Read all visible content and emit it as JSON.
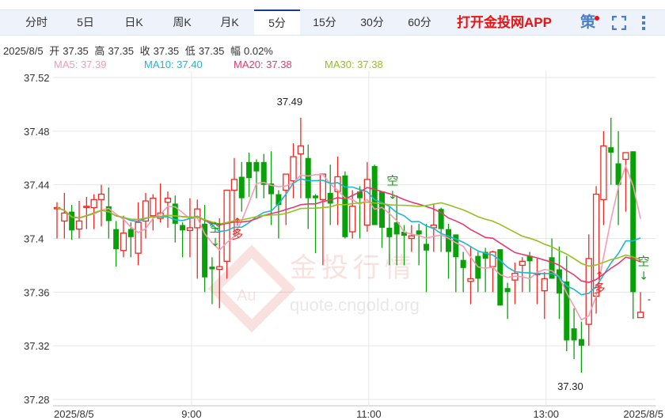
{
  "tabs": [
    {
      "label": "分时"
    },
    {
      "label": "5日"
    },
    {
      "label": "日K"
    },
    {
      "label": "周K"
    },
    {
      "label": "月K"
    },
    {
      "label": "5分",
      "active": true
    },
    {
      "label": "15分"
    },
    {
      "label": "30分"
    },
    {
      "label": "60分"
    }
  ],
  "app_link": "打开金投网APP",
  "strategy_label": "策",
  "icons": {
    "strategy": "strategy-icon",
    "fullscreen": "fullscreen-icon",
    "menu": "more-vertical-icon"
  },
  "info": {
    "date": "2025/8/5",
    "open_label": "开",
    "open": "37.35",
    "high_label": "高",
    "high": "37.35",
    "close_label": "收",
    "close": "37.35",
    "low_label": "低",
    "low": "37.35",
    "amp_label": "幅",
    "amp": "0.02%"
  },
  "ma_legend": [
    {
      "text": "MA5: 37.39",
      "color": "#f59bb6"
    },
    {
      "text": "MA10: 37.40",
      "color": "#1fb6d6"
    },
    {
      "text": "MA20: 37.38",
      "color": "#e8396f"
    },
    {
      "text": "MA30: 37.38",
      "color": "#95c01e"
    }
  ],
  "watermark": {
    "logo": "Au",
    "name": "金投行情",
    "url": "quote.cngold.org"
  },
  "colors": {
    "up": "#ee2a24",
    "down": "#0aa00a",
    "grid": "#e6e6e6"
  },
  "chart_data": {
    "type": "candlestick",
    "interval": "5分",
    "ylim": [
      37.28,
      37.52
    ],
    "yticks": [
      "37.52",
      "37.48",
      "37.44",
      "37.4",
      "37.36",
      "37.32",
      "37.28"
    ],
    "ytick_values": [
      37.52,
      37.48,
      37.44,
      37.4,
      37.36,
      37.32,
      37.28
    ],
    "xticks": [
      {
        "index": 0,
        "label": "2025/8/5"
      },
      {
        "index": 18,
        "label": "9:00"
      },
      {
        "index": 42,
        "label": "11:00"
      },
      {
        "index": 66,
        "label": "13:00"
      },
      {
        "index": 79,
        "label": "2025/8/5"
      }
    ],
    "grid": true,
    "ma_periods": [
      5,
      10,
      20,
      30
    ],
    "ohlc": [
      [
        37.423,
        37.427,
        37.4,
        37.423
      ],
      [
        37.413,
        37.434,
        37.4,
        37.419
      ],
      [
        37.42,
        37.425,
        37.399,
        37.406
      ],
      [
        37.407,
        37.428,
        37.4,
        37.413
      ],
      [
        37.424,
        37.431,
        37.407,
        37.424
      ],
      [
        37.423,
        37.433,
        37.407,
        37.429
      ],
      [
        37.429,
        37.44,
        37.409,
        37.433
      ],
      [
        37.424,
        37.438,
        37.4,
        37.413
      ],
      [
        37.407,
        37.413,
        37.379,
        37.392
      ],
      [
        37.391,
        37.417,
        37.386,
        37.404
      ],
      [
        37.407,
        37.412,
        37.386,
        37.401
      ],
      [
        37.389,
        37.427,
        37.38,
        37.412
      ],
      [
        37.413,
        37.434,
        37.4,
        37.428
      ],
      [
        37.417,
        37.433,
        37.406,
        37.43
      ],
      [
        37.415,
        37.441,
        37.412,
        37.419
      ],
      [
        37.427,
        37.435,
        37.408,
        37.43
      ],
      [
        37.426,
        37.432,
        37.397,
        37.411
      ],
      [
        37.41,
        37.412,
        37.386,
        37.406
      ],
      [
        37.406,
        37.43,
        37.386,
        37.408
      ],
      [
        37.408,
        37.429,
        37.37,
        37.422
      ],
      [
        37.411,
        37.425,
        37.36,
        37.371
      ],
      [
        37.379,
        37.386,
        37.351,
        37.377
      ],
      [
        37.377,
        37.415,
        37.348,
        37.379
      ],
      [
        37.383,
        37.436,
        37.37,
        37.436
      ],
      [
        37.436,
        37.46,
        37.402,
        37.444
      ],
      [
        37.446,
        37.457,
        37.42,
        37.43
      ],
      [
        37.457,
        37.464,
        37.431,
        37.445
      ],
      [
        37.457,
        37.459,
        37.43,
        37.45
      ],
      [
        37.457,
        37.463,
        37.43,
        37.44
      ],
      [
        37.441,
        37.465,
        37.41,
        37.433
      ],
      [
        37.433,
        37.436,
        37.4,
        37.425
      ],
      [
        37.436,
        37.448,
        37.41,
        37.448
      ],
      [
        37.443,
        37.471,
        37.43,
        37.461
      ],
      [
        37.463,
        37.49,
        37.43,
        37.469
      ],
      [
        37.46,
        37.47,
        37.407,
        37.43
      ],
      [
        37.432,
        37.433,
        37.389,
        37.43
      ],
      [
        37.429,
        37.448,
        37.38,
        37.448
      ],
      [
        37.434,
        37.455,
        37.41,
        37.426
      ],
      [
        37.435,
        37.461,
        37.41,
        37.446
      ],
      [
        37.447,
        37.45,
        37.4,
        37.401
      ],
      [
        37.405,
        37.436,
        37.4,
        37.424
      ],
      [
        37.435,
        37.439,
        37.4,
        37.43
      ],
      [
        37.41,
        37.457,
        37.405,
        37.444
      ],
      [
        37.454,
        37.455,
        37.41,
        37.41
      ],
      [
        37.435,
        37.435,
        37.393,
        37.408
      ],
      [
        37.408,
        37.424,
        37.38,
        37.401
      ],
      [
        37.412,
        37.432,
        37.38,
        37.403
      ],
      [
        37.405,
        37.41,
        37.38,
        37.402
      ],
      [
        37.4,
        37.41,
        37.39,
        37.402
      ],
      [
        37.406,
        37.411,
        37.38,
        37.403
      ],
      [
        37.396,
        37.411,
        37.36,
        37.391
      ],
      [
        37.408,
        37.426,
        37.39,
        37.41
      ],
      [
        37.422,
        37.423,
        37.39,
        37.407
      ],
      [
        37.407,
        37.411,
        37.37,
        37.39
      ],
      [
        37.403,
        37.403,
        37.36,
        37.386
      ],
      [
        37.384,
        37.39,
        37.36,
        37.378
      ],
      [
        37.368,
        37.394,
        37.351,
        37.37
      ],
      [
        37.387,
        37.39,
        37.36,
        37.37
      ],
      [
        37.39,
        37.393,
        37.36,
        37.385
      ],
      [
        37.379,
        37.391,
        37.36,
        37.39
      ],
      [
        37.392,
        37.392,
        37.35,
        37.35
      ],
      [
        37.363,
        37.367,
        37.34,
        37.36
      ],
      [
        37.369,
        37.382,
        37.351,
        37.374
      ],
      [
        37.38,
        37.386,
        37.36,
        37.383
      ],
      [
        37.387,
        37.39,
        37.36,
        37.383
      ],
      [
        37.373,
        37.385,
        37.351,
        37.374
      ],
      [
        37.361,
        37.375,
        37.34,
        37.37
      ],
      [
        37.386,
        37.4,
        37.37,
        37.37
      ],
      [
        37.377,
        37.394,
        37.34,
        37.359
      ],
      [
        37.368,
        37.387,
        37.316,
        37.324
      ],
      [
        37.333,
        37.348,
        37.31,
        37.324
      ],
      [
        37.325,
        37.338,
        37.3,
        37.32
      ],
      [
        37.336,
        37.403,
        37.32,
        37.385
      ],
      [
        37.357,
        37.439,
        37.344,
        37.433
      ],
      [
        37.429,
        37.48,
        37.41,
        37.469
      ],
      [
        37.468,
        37.49,
        37.44,
        37.464
      ],
      [
        37.456,
        37.48,
        37.41,
        37.44
      ],
      [
        37.459,
        37.464,
        37.42,
        37.464
      ],
      [
        37.465,
        37.465,
        37.34,
        37.36
      ],
      [
        37.341,
        37.36,
        37.341,
        37.345
      ]
    ],
    "annotations": [
      {
        "index": 33,
        "text": "37.49",
        "kind": "max",
        "price": 37.49
      },
      {
        "index": 71,
        "text": "37.30",
        "kind": "min",
        "price": 37.3
      }
    ],
    "signals": [
      {
        "index": 21,
        "text": "空",
        "arrow": "↓",
        "kind": "short",
        "price": 37.405
      },
      {
        "index": 24,
        "text": "多",
        "arrow": "↑",
        "kind": "long",
        "price": 37.4
      },
      {
        "index": 45,
        "text": "空",
        "arrow": "↓",
        "kind": "short",
        "price": 37.44
      },
      {
        "index": 73,
        "text": "多",
        "arrow": "↑",
        "kind": "long",
        "price": 37.36
      },
      {
        "index": 79,
        "text": "空",
        "arrow": "↓",
        "kind": "short",
        "price": 37.38
      }
    ],
    "last_price_marker": "-"
  }
}
